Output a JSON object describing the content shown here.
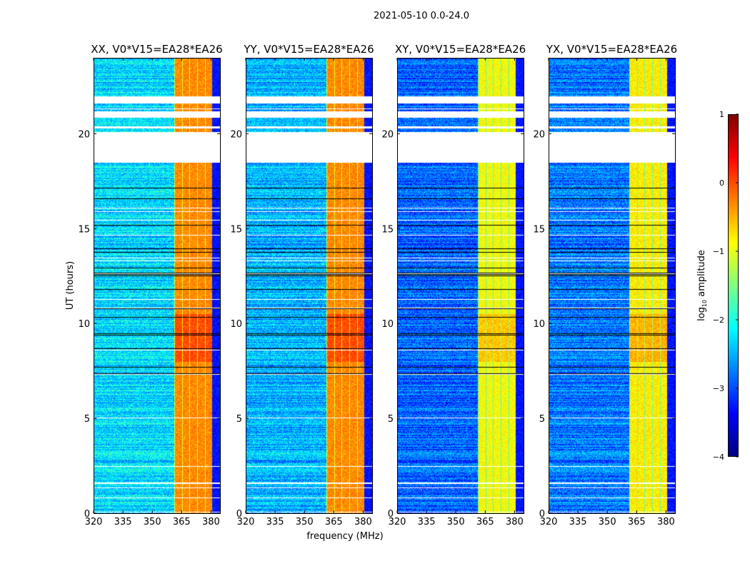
{
  "chart_data": {
    "type": "heatmap",
    "title": "2021-05-10 0.0-24.0",
    "xlabel": "frequency (MHz)",
    "ylabel": "UT (hours)",
    "xlim": [
      320,
      384.6
    ],
    "ylim": [
      0,
      24
    ],
    "xticks": [
      "320",
      "335",
      "350",
      "365",
      "380"
    ],
    "xtick_values": [
      320,
      335,
      350,
      365,
      380
    ],
    "yticks": [
      "0",
      "5",
      "10",
      "15",
      "20"
    ],
    "ytick_values": [
      0,
      5,
      10,
      15,
      20
    ],
    "panels": [
      {
        "title": "XX, V0*V15=EA28*EA26",
        "base_log_amp": -2.3,
        "band_log_amp": -0.3
      },
      {
        "title": "YY, V0*V15=EA28*EA26",
        "base_log_amp": -2.5,
        "band_log_amp": -0.3
      },
      {
        "title": "XY, V0*V15=EA28*EA26",
        "base_log_amp": -2.9,
        "band_log_amp": -0.9
      },
      {
        "title": "YX, V0*V15=EA28*EA26",
        "base_log_amp": -2.8,
        "band_log_amp": -0.8
      }
    ],
    "high_band_mhz": [
      361,
      380.5
    ],
    "flagged_gaps_hours": [
      [
        18.5,
        20.1
      ],
      [
        20.9,
        21.2
      ],
      [
        21.6,
        22.0
      ],
      [
        20.3,
        20.4
      ]
    ],
    "colorbar": {
      "label": "log10 amplitude",
      "label_main": "log",
      "label_sub": "10",
      "label_rest": " amplitude",
      "range": [
        -4,
        1
      ],
      "ticks": [
        "1",
        "0",
        "−1",
        "−2",
        "−3",
        "−4"
      ],
      "tick_values": [
        1,
        0,
        -1,
        -2,
        -3,
        -4
      ],
      "colormap": "jet"
    }
  }
}
